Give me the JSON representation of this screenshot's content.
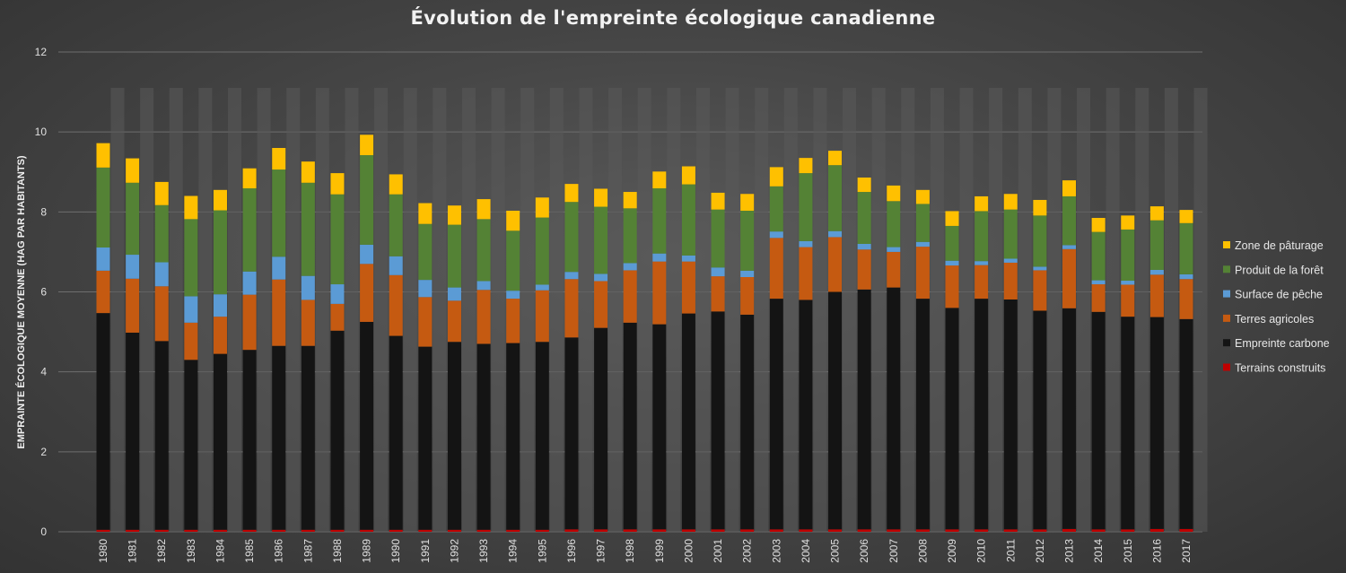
{
  "title": "Évolution de l'empreinte écologique canadienne",
  "chart_data": {
    "type": "bar",
    "stacked": true,
    "title": "Évolution de l'empreinte écologique canadienne",
    "xlabel": "",
    "ylabel": "EMPRAINTE ÉCOLOGIQUE MOYENNE (HAG PAR HABITANTS)",
    "ylim": [
      0,
      12
    ],
    "yticks": [
      0,
      2,
      4,
      6,
      8,
      10,
      12
    ],
    "grid": true,
    "legend_position": "right",
    "categories": [
      "1980",
      "1981",
      "1982",
      "1983",
      "1984",
      "1985",
      "1986",
      "1987",
      "1988",
      "1989",
      "1990",
      "1991",
      "1992",
      "1993",
      "1994",
      "1995",
      "1996",
      "1997",
      "1998",
      "1999",
      "2000",
      "2001",
      "2002",
      "2003",
      "2004",
      "2005",
      "2006",
      "2007",
      "2008",
      "2009",
      "2010",
      "2011",
      "2012",
      "2013",
      "2014",
      "2015",
      "2016",
      "2017"
    ],
    "series": [
      {
        "name": "Terrains construits",
        "color": "#c00000",
        "values": [
          0.05,
          0.05,
          0.05,
          0.05,
          0.05,
          0.05,
          0.05,
          0.05,
          0.05,
          0.05,
          0.05,
          0.05,
          0.05,
          0.05,
          0.05,
          0.05,
          0.06,
          0.06,
          0.06,
          0.06,
          0.06,
          0.06,
          0.06,
          0.06,
          0.06,
          0.06,
          0.06,
          0.06,
          0.06,
          0.06,
          0.06,
          0.06,
          0.06,
          0.07,
          0.06,
          0.06,
          0.07,
          0.07
        ]
      },
      {
        "name": "Empreinte carbone",
        "color": "#141414",
        "values": [
          5.42,
          4.93,
          4.72,
          4.25,
          4.4,
          4.5,
          4.6,
          4.6,
          4.98,
          5.2,
          4.85,
          4.58,
          4.7,
          4.65,
          4.67,
          4.7,
          4.8,
          5.04,
          5.17,
          5.13,
          5.4,
          5.45,
          5.37,
          5.77,
          5.74,
          5.94,
          6.0,
          6.05,
          5.77,
          5.54,
          5.77,
          5.75,
          5.47,
          5.52,
          5.44,
          5.32,
          5.3,
          5.25
        ]
      },
      {
        "name": "Terres agricoles",
        "color": "#c55a11",
        "values": [
          1.06,
          1.35,
          1.37,
          0.93,
          0.93,
          1.38,
          1.66,
          1.15,
          0.67,
          1.45,
          1.52,
          1.24,
          1.03,
          1.35,
          1.11,
          1.29,
          1.46,
          1.17,
          1.31,
          1.57,
          1.3,
          0.88,
          0.94,
          1.52,
          1.32,
          1.37,
          1.0,
          0.89,
          1.3,
          1.06,
          0.84,
          0.92,
          1.01,
          1.48,
          0.69,
          0.8,
          1.06,
          1.0
        ]
      },
      {
        "name": "Surface de pêche",
        "color": "#5b9bd5",
        "values": [
          0.58,
          0.6,
          0.6,
          0.66,
          0.56,
          0.58,
          0.57,
          0.6,
          0.49,
          0.48,
          0.47,
          0.43,
          0.33,
          0.22,
          0.2,
          0.14,
          0.18,
          0.18,
          0.18,
          0.2,
          0.15,
          0.22,
          0.16,
          0.16,
          0.15,
          0.15,
          0.14,
          0.12,
          0.12,
          0.12,
          0.1,
          0.1,
          0.09,
          0.1,
          0.1,
          0.1,
          0.12,
          0.12
        ]
      },
      {
        "name": "Produit de la forêt",
        "color": "#548235",
        "values": [
          2.0,
          1.8,
          1.43,
          1.93,
          2.1,
          2.08,
          2.18,
          2.33,
          2.25,
          2.24,
          1.55,
          1.4,
          1.57,
          1.55,
          1.5,
          1.68,
          1.75,
          1.68,
          1.37,
          1.63,
          1.78,
          1.45,
          1.5,
          1.13,
          1.7,
          1.65,
          1.3,
          1.15,
          0.95,
          0.87,
          1.25,
          1.23,
          1.28,
          1.22,
          1.21,
          1.28,
          1.24,
          1.28
        ]
      },
      {
        "name": "Zone de pâturage",
        "color": "#ffc000",
        "values": [
          0.61,
          0.61,
          0.58,
          0.58,
          0.51,
          0.5,
          0.54,
          0.53,
          0.53,
          0.51,
          0.5,
          0.52,
          0.48,
          0.5,
          0.5,
          0.5,
          0.45,
          0.45,
          0.41,
          0.42,
          0.45,
          0.42,
          0.42,
          0.48,
          0.38,
          0.36,
          0.36,
          0.39,
          0.35,
          0.37,
          0.37,
          0.39,
          0.39,
          0.4,
          0.35,
          0.35,
          0.35,
          0.33
        ]
      }
    ]
  }
}
